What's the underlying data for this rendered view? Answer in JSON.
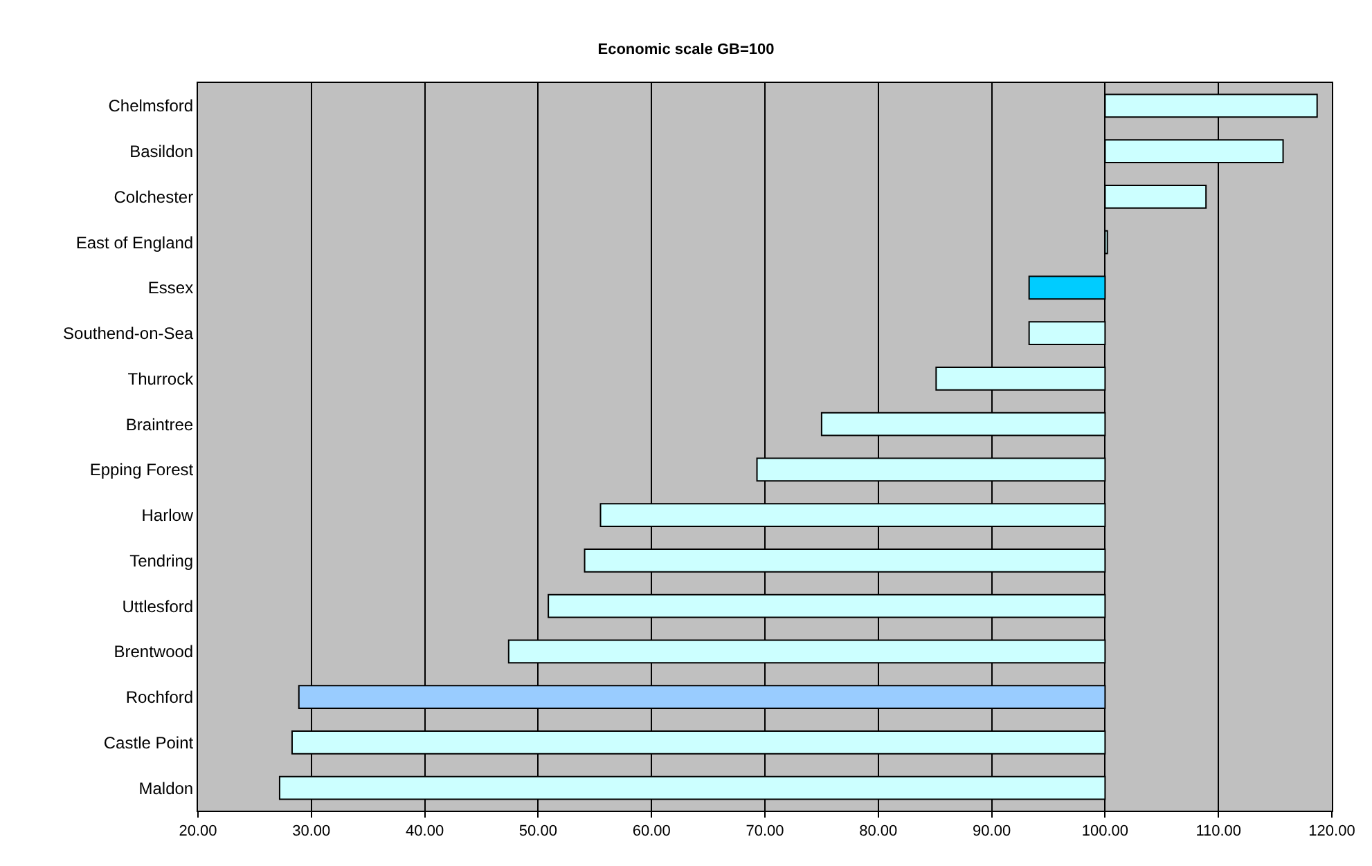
{
  "chart_data": {
    "type": "bar",
    "orientation": "horizontal",
    "title": "Economic scale GB=100",
    "categories": [
      "Chelmsford",
      "Basildon",
      "Colchester",
      "East of England",
      "Essex",
      "Southend-on-Sea",
      "Thurrock",
      "Braintree",
      "Epping Forest",
      "Harlow",
      "Tendring",
      "Uttlesford",
      "Brentwood",
      "Rochford",
      "Castle Point",
      "Maldon"
    ],
    "base": [
      100,
      100,
      100,
      100,
      100,
      100,
      100,
      100,
      100,
      100,
      100,
      100,
      100,
      100,
      100,
      100
    ],
    "values": [
      18.7,
      15.7,
      8.9,
      0.2,
      -6.7,
      -6.7,
      -14.9,
      -25.0,
      -30.7,
      -44.5,
      -45.9,
      -49.1,
      -52.6,
      -71.1,
      -71.7,
      -72.8
    ],
    "colors": [
      "#ccffff",
      "#ccffff",
      "#ccffff",
      "#ccffff",
      "#00ccff",
      "#ccffff",
      "#ccffff",
      "#ccffff",
      "#ccffff",
      "#ccffff",
      "#ccffff",
      "#ccffff",
      "#ccffff",
      "#99ccff",
      "#ccffff",
      "#ccffff"
    ],
    "xlim": [
      20,
      120
    ],
    "xticks": [
      {
        "value": 20,
        "label": "20.00"
      },
      {
        "value": 30,
        "label": "30.00"
      },
      {
        "value": 40,
        "label": "40.00"
      },
      {
        "value": 50,
        "label": "50.00"
      },
      {
        "value": 60,
        "label": "60.00"
      },
      {
        "value": 70,
        "label": "70.00"
      },
      {
        "value": 80,
        "label": "80.00"
      },
      {
        "value": 90,
        "label": "90.00"
      },
      {
        "value": 100,
        "label": "100.00"
      },
      {
        "value": 110,
        "label": "110.00"
      },
      {
        "value": 120,
        "label": "120.00"
      }
    ],
    "grid": "x",
    "legend": false
  }
}
